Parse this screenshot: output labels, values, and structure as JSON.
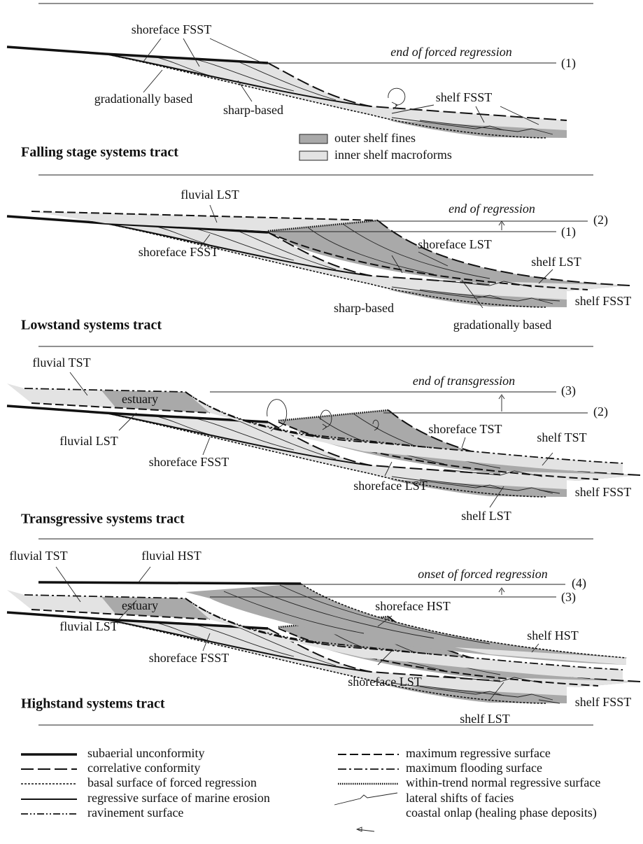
{
  "panels": [
    {
      "title": "Falling stage systems tract",
      "labels": [
        "shoreface FSST",
        "end of forced regression",
        "(1)",
        "gradationally based",
        "sharp-based",
        "shelf FSST",
        "outer shelf fines",
        "inner shelf macroforms"
      ]
    },
    {
      "title": "Lowstand systems tract",
      "labels": [
        "fluvial LST",
        "end of regression",
        "(2)",
        "(1)",
        "shoreface FSST",
        "shoreface LST",
        "shelf LST",
        "sharp-based",
        "shelf FSST",
        "gradationally based"
      ]
    },
    {
      "title": "Transgressive systems tract",
      "labels": [
        "fluvial TST",
        "end of transgression",
        "(3)",
        "estuary",
        "(2)",
        "fluvial LST",
        "shoreface TST",
        "shelf TST",
        "shoreface FSST",
        "shoreface LST",
        "shelf FSST",
        "shelf LST"
      ]
    },
    {
      "title": "Highstand systems tract",
      "labels": [
        "fluvial TST",
        "fluvial HST",
        "onset of forced regression",
        "(4)",
        "estuary",
        "(3)",
        "shoreface HST",
        "fluvial LST",
        "shelf HST",
        "shoreface FSST",
        "shoreface LST",
        "shelf FSST",
        "shelf LST"
      ]
    }
  ],
  "legend": [
    "subaerial unconformity",
    "correlative conformity",
    "basal surface of forced regression",
    "regressive surface of marine erosion",
    "ravinement surface",
    "maximum regressive surface",
    "maximum flooding surface",
    "within-trend normal regressive surface",
    "lateral shifts of facies",
    "coastal onlap (healing phase deposits)"
  ]
}
